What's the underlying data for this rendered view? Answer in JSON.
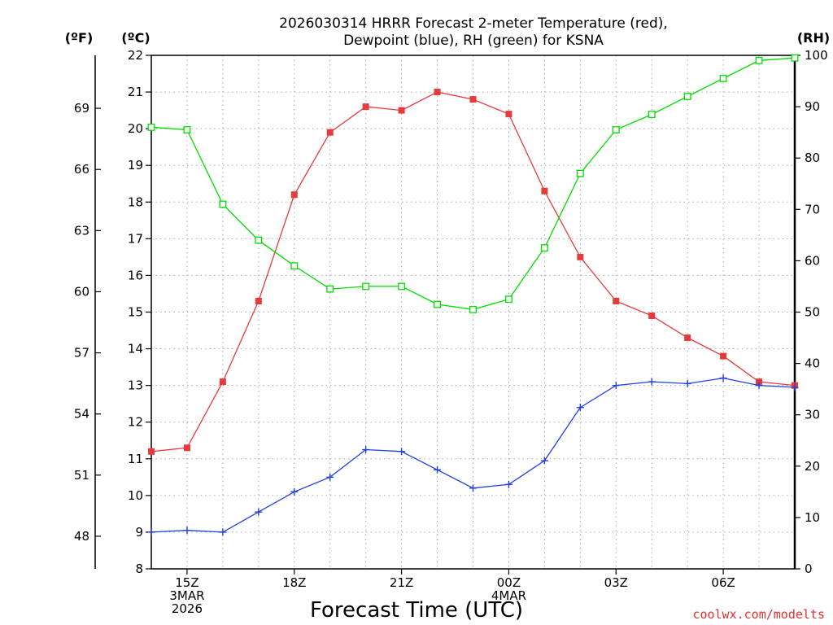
{
  "chart_data": {
    "type": "line",
    "title_line1": "2026030314 HRRR Forecast 2-meter Temperature (red),",
    "title_line2": "Dewpoint (blue), RH (green) for KSNA",
    "units": {
      "fahrenheit": "(ºF)",
      "celsius": "(ºC)",
      "rh": "(RH)"
    },
    "xlabel": "Forecast Time (UTC)",
    "credit": "coolwx.com/modelts",
    "x_hours": [
      14,
      15,
      16,
      17,
      18,
      19,
      20,
      21,
      22,
      23,
      24,
      25,
      26,
      27,
      28,
      29,
      30,
      31,
      32
    ],
    "x_ticks": [
      {
        "hour": 15,
        "lines": [
          "15Z",
          "3MAR",
          "2026"
        ]
      },
      {
        "hour": 18,
        "lines": [
          "18Z"
        ]
      },
      {
        "hour": 21,
        "lines": [
          "21Z"
        ]
      },
      {
        "hour": 24,
        "lines": [
          "00Z",
          "4MAR"
        ]
      },
      {
        "hour": 27,
        "lines": [
          "03Z"
        ]
      },
      {
        "hour": 30,
        "lines": [
          "06Z"
        ]
      }
    ],
    "celsius_range": [
      8,
      22
    ],
    "celsius_ticks": [
      8,
      9,
      10,
      11,
      12,
      13,
      14,
      15,
      16,
      17,
      18,
      19,
      20,
      21,
      22
    ],
    "fahrenheit_ticks": [
      48,
      51,
      54,
      57,
      60,
      63,
      66,
      69
    ],
    "rh_range": [
      0,
      100
    ],
    "rh_ticks": [
      0,
      10,
      20,
      30,
      40,
      50,
      60,
      70,
      80,
      90,
      100
    ],
    "grid": true,
    "series": [
      {
        "name": "Temperature (red)",
        "axis": "celsius",
        "color": "#e83a3a",
        "marker": "filled-square",
        "values": [
          11.2,
          11.3,
          13.1,
          15.3,
          18.2,
          19.9,
          20.6,
          20.5,
          21.0,
          20.8,
          20.4,
          18.3,
          16.5,
          15.3,
          14.9,
          14.3,
          13.8,
          13.1,
          13.0
        ]
      },
      {
        "name": "Dewpoint (blue)",
        "axis": "celsius",
        "color": "#2040e0",
        "marker": "plus",
        "values": [
          9.0,
          9.05,
          9.0,
          9.55,
          10.1,
          10.5,
          11.25,
          11.2,
          10.7,
          10.2,
          10.3,
          10.95,
          12.4,
          13.0,
          13.1,
          13.05,
          13.2,
          13.0,
          12.95
        ]
      },
      {
        "name": "RH (green)",
        "axis": "rh",
        "color": "#00dd00",
        "marker": "open-square",
        "values": [
          86,
          85.5,
          71,
          64,
          59,
          54.5,
          55,
          55,
          51.5,
          50.5,
          52.5,
          62.5,
          77,
          85.5,
          88.5,
          92,
          95.5,
          99,
          99.5
        ]
      }
    ]
  }
}
